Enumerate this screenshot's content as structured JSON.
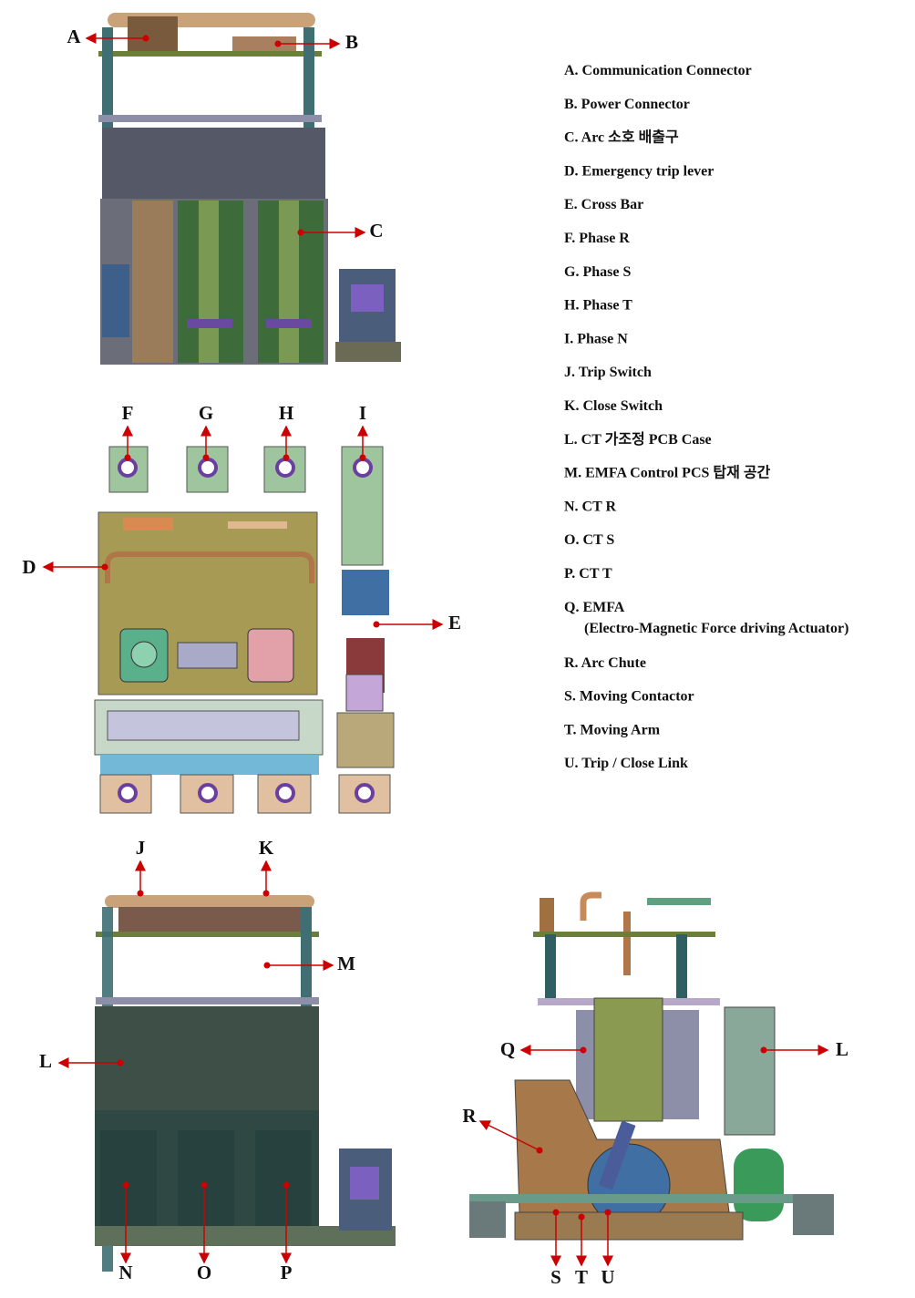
{
  "legend": [
    {
      "text": "A. Communication Connector"
    },
    {
      "text": "B. Power Connector"
    },
    {
      "text": "C. Arc 소호 배출구"
    },
    {
      "text": "D. Emergency trip lever"
    },
    {
      "text": "E. Cross Bar"
    },
    {
      "text": "F. Phase R"
    },
    {
      "text": "G. Phase S"
    },
    {
      "text": "H. Phase T"
    },
    {
      "text": "I. Phase N"
    },
    {
      "text": "J. Trip Switch"
    },
    {
      "text": "K. Close Switch"
    },
    {
      "text": "L. CT 가조정 PCB Case"
    },
    {
      "text": "M. EMFA Control PCS 탑재 공간"
    },
    {
      "text": "N. CT R"
    },
    {
      "text": "O. CT S"
    },
    {
      "text": "P. CT T"
    },
    {
      "text": "Q. EMFA",
      "note": "(Electro-Magnetic Force driving Actuator)"
    },
    {
      "text": "R. Arc Chute"
    },
    {
      "text": "S. Moving Contactor"
    },
    {
      "text": "T. Moving Arm"
    },
    {
      "text": "U. Trip / Close Link"
    }
  ],
  "callouts": [
    "A",
    "B",
    "C",
    "D",
    "E",
    "F",
    "G",
    "H",
    "I",
    "J",
    "K",
    "M",
    "L",
    "N",
    "O",
    "P",
    "Q",
    "L",
    "R",
    "S",
    "T",
    "U"
  ]
}
